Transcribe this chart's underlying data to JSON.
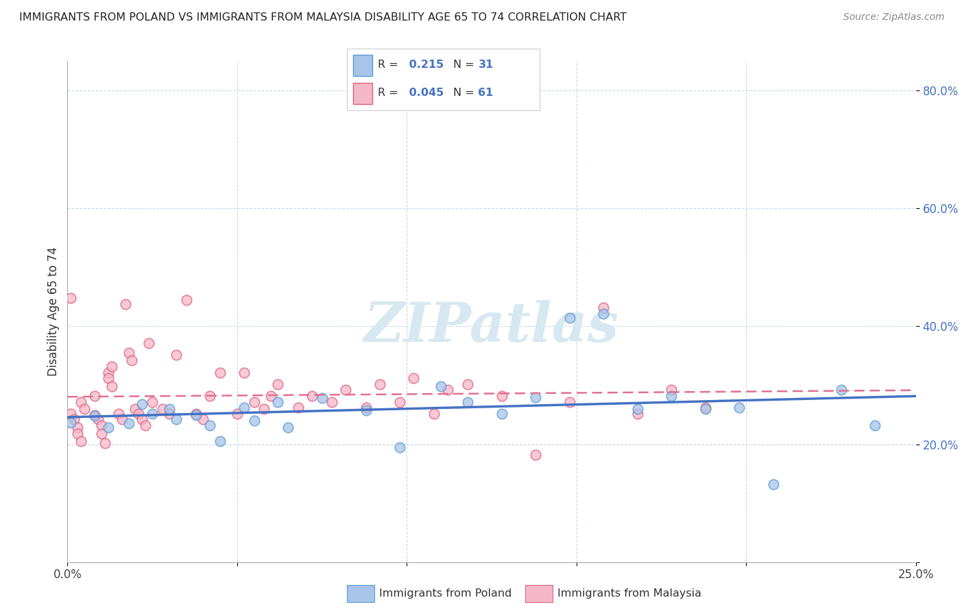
{
  "title": "IMMIGRANTS FROM POLAND VS IMMIGRANTS FROM MALAYSIA DISABILITY AGE 65 TO 74 CORRELATION CHART",
  "source": "Source: ZipAtlas.com",
  "ylabel": "Disability Age 65 to 74",
  "xlim": [
    0.0,
    0.25
  ],
  "ylim": [
    0.0,
    0.85
  ],
  "x_tick_positions": [
    0.0,
    0.05,
    0.1,
    0.15,
    0.2,
    0.25
  ],
  "x_tick_labels": [
    "0.0%",
    "",
    "",
    "",
    "",
    "25.0%"
  ],
  "y_tick_positions": [
    0.0,
    0.2,
    0.4,
    0.6,
    0.8
  ],
  "y_tick_labels": [
    "",
    "20.0%",
    "40.0%",
    "60.0%",
    "80.0%"
  ],
  "poland_R": 0.215,
  "poland_N": 31,
  "malaysia_R": 0.045,
  "malaysia_N": 61,
  "poland_dot_color": "#a8c4e8",
  "poland_edge_color": "#5b9bd5",
  "malaysia_dot_color": "#f4b8c8",
  "malaysia_edge_color": "#e06080",
  "poland_line_color": "#4472c4",
  "malaysia_line_color": "#e07090",
  "background_color": "#ffffff",
  "grid_color": "#c8d8e8",
  "watermark_color": "#d8e8f0",
  "poland_scatter": [
    [
      0.001,
      0.237
    ],
    [
      0.008,
      0.248
    ],
    [
      0.012,
      0.228
    ],
    [
      0.018,
      0.235
    ],
    [
      0.022,
      0.268
    ],
    [
      0.025,
      0.252
    ],
    [
      0.03,
      0.26
    ],
    [
      0.032,
      0.242
    ],
    [
      0.038,
      0.25
    ],
    [
      0.042,
      0.232
    ],
    [
      0.045,
      0.205
    ],
    [
      0.052,
      0.262
    ],
    [
      0.055,
      0.24
    ],
    [
      0.062,
      0.272
    ],
    [
      0.065,
      0.228
    ],
    [
      0.075,
      0.278
    ],
    [
      0.088,
      0.258
    ],
    [
      0.098,
      0.195
    ],
    [
      0.11,
      0.298
    ],
    [
      0.118,
      0.272
    ],
    [
      0.128,
      0.252
    ],
    [
      0.138,
      0.28
    ],
    [
      0.148,
      0.415
    ],
    [
      0.158,
      0.422
    ],
    [
      0.168,
      0.26
    ],
    [
      0.178,
      0.282
    ],
    [
      0.188,
      0.26
    ],
    [
      0.198,
      0.262
    ],
    [
      0.208,
      0.132
    ],
    [
      0.228,
      0.292
    ],
    [
      0.238,
      0.232
    ]
  ],
  "malaysia_scatter": [
    [
      0.001,
      0.252
    ],
    [
      0.002,
      0.242
    ],
    [
      0.003,
      0.228
    ],
    [
      0.003,
      0.218
    ],
    [
      0.004,
      0.205
    ],
    [
      0.004,
      0.272
    ],
    [
      0.005,
      0.26
    ],
    [
      0.008,
      0.282
    ],
    [
      0.008,
      0.25
    ],
    [
      0.009,
      0.242
    ],
    [
      0.01,
      0.232
    ],
    [
      0.01,
      0.218
    ],
    [
      0.011,
      0.202
    ],
    [
      0.012,
      0.322
    ],
    [
      0.012,
      0.312
    ],
    [
      0.013,
      0.298
    ],
    [
      0.013,
      0.332
    ],
    [
      0.015,
      0.252
    ],
    [
      0.016,
      0.242
    ],
    [
      0.017,
      0.438
    ],
    [
      0.018,
      0.355
    ],
    [
      0.019,
      0.342
    ],
    [
      0.02,
      0.26
    ],
    [
      0.021,
      0.252
    ],
    [
      0.022,
      0.242
    ],
    [
      0.023,
      0.232
    ],
    [
      0.024,
      0.372
    ],
    [
      0.025,
      0.272
    ],
    [
      0.028,
      0.26
    ],
    [
      0.03,
      0.252
    ],
    [
      0.032,
      0.352
    ],
    [
      0.035,
      0.445
    ],
    [
      0.038,
      0.252
    ],
    [
      0.04,
      0.242
    ],
    [
      0.042,
      0.282
    ],
    [
      0.045,
      0.322
    ],
    [
      0.05,
      0.252
    ],
    [
      0.052,
      0.322
    ],
    [
      0.055,
      0.272
    ],
    [
      0.058,
      0.26
    ],
    [
      0.06,
      0.282
    ],
    [
      0.062,
      0.302
    ],
    [
      0.068,
      0.262
    ],
    [
      0.072,
      0.282
    ],
    [
      0.078,
      0.272
    ],
    [
      0.082,
      0.292
    ],
    [
      0.088,
      0.262
    ],
    [
      0.092,
      0.302
    ],
    [
      0.098,
      0.272
    ],
    [
      0.102,
      0.312
    ],
    [
      0.108,
      0.252
    ],
    [
      0.112,
      0.292
    ],
    [
      0.118,
      0.302
    ],
    [
      0.128,
      0.282
    ],
    [
      0.138,
      0.182
    ],
    [
      0.148,
      0.272
    ],
    [
      0.158,
      0.432
    ],
    [
      0.168,
      0.252
    ],
    [
      0.178,
      0.292
    ],
    [
      0.188,
      0.262
    ],
    [
      0.001,
      0.448
    ]
  ]
}
